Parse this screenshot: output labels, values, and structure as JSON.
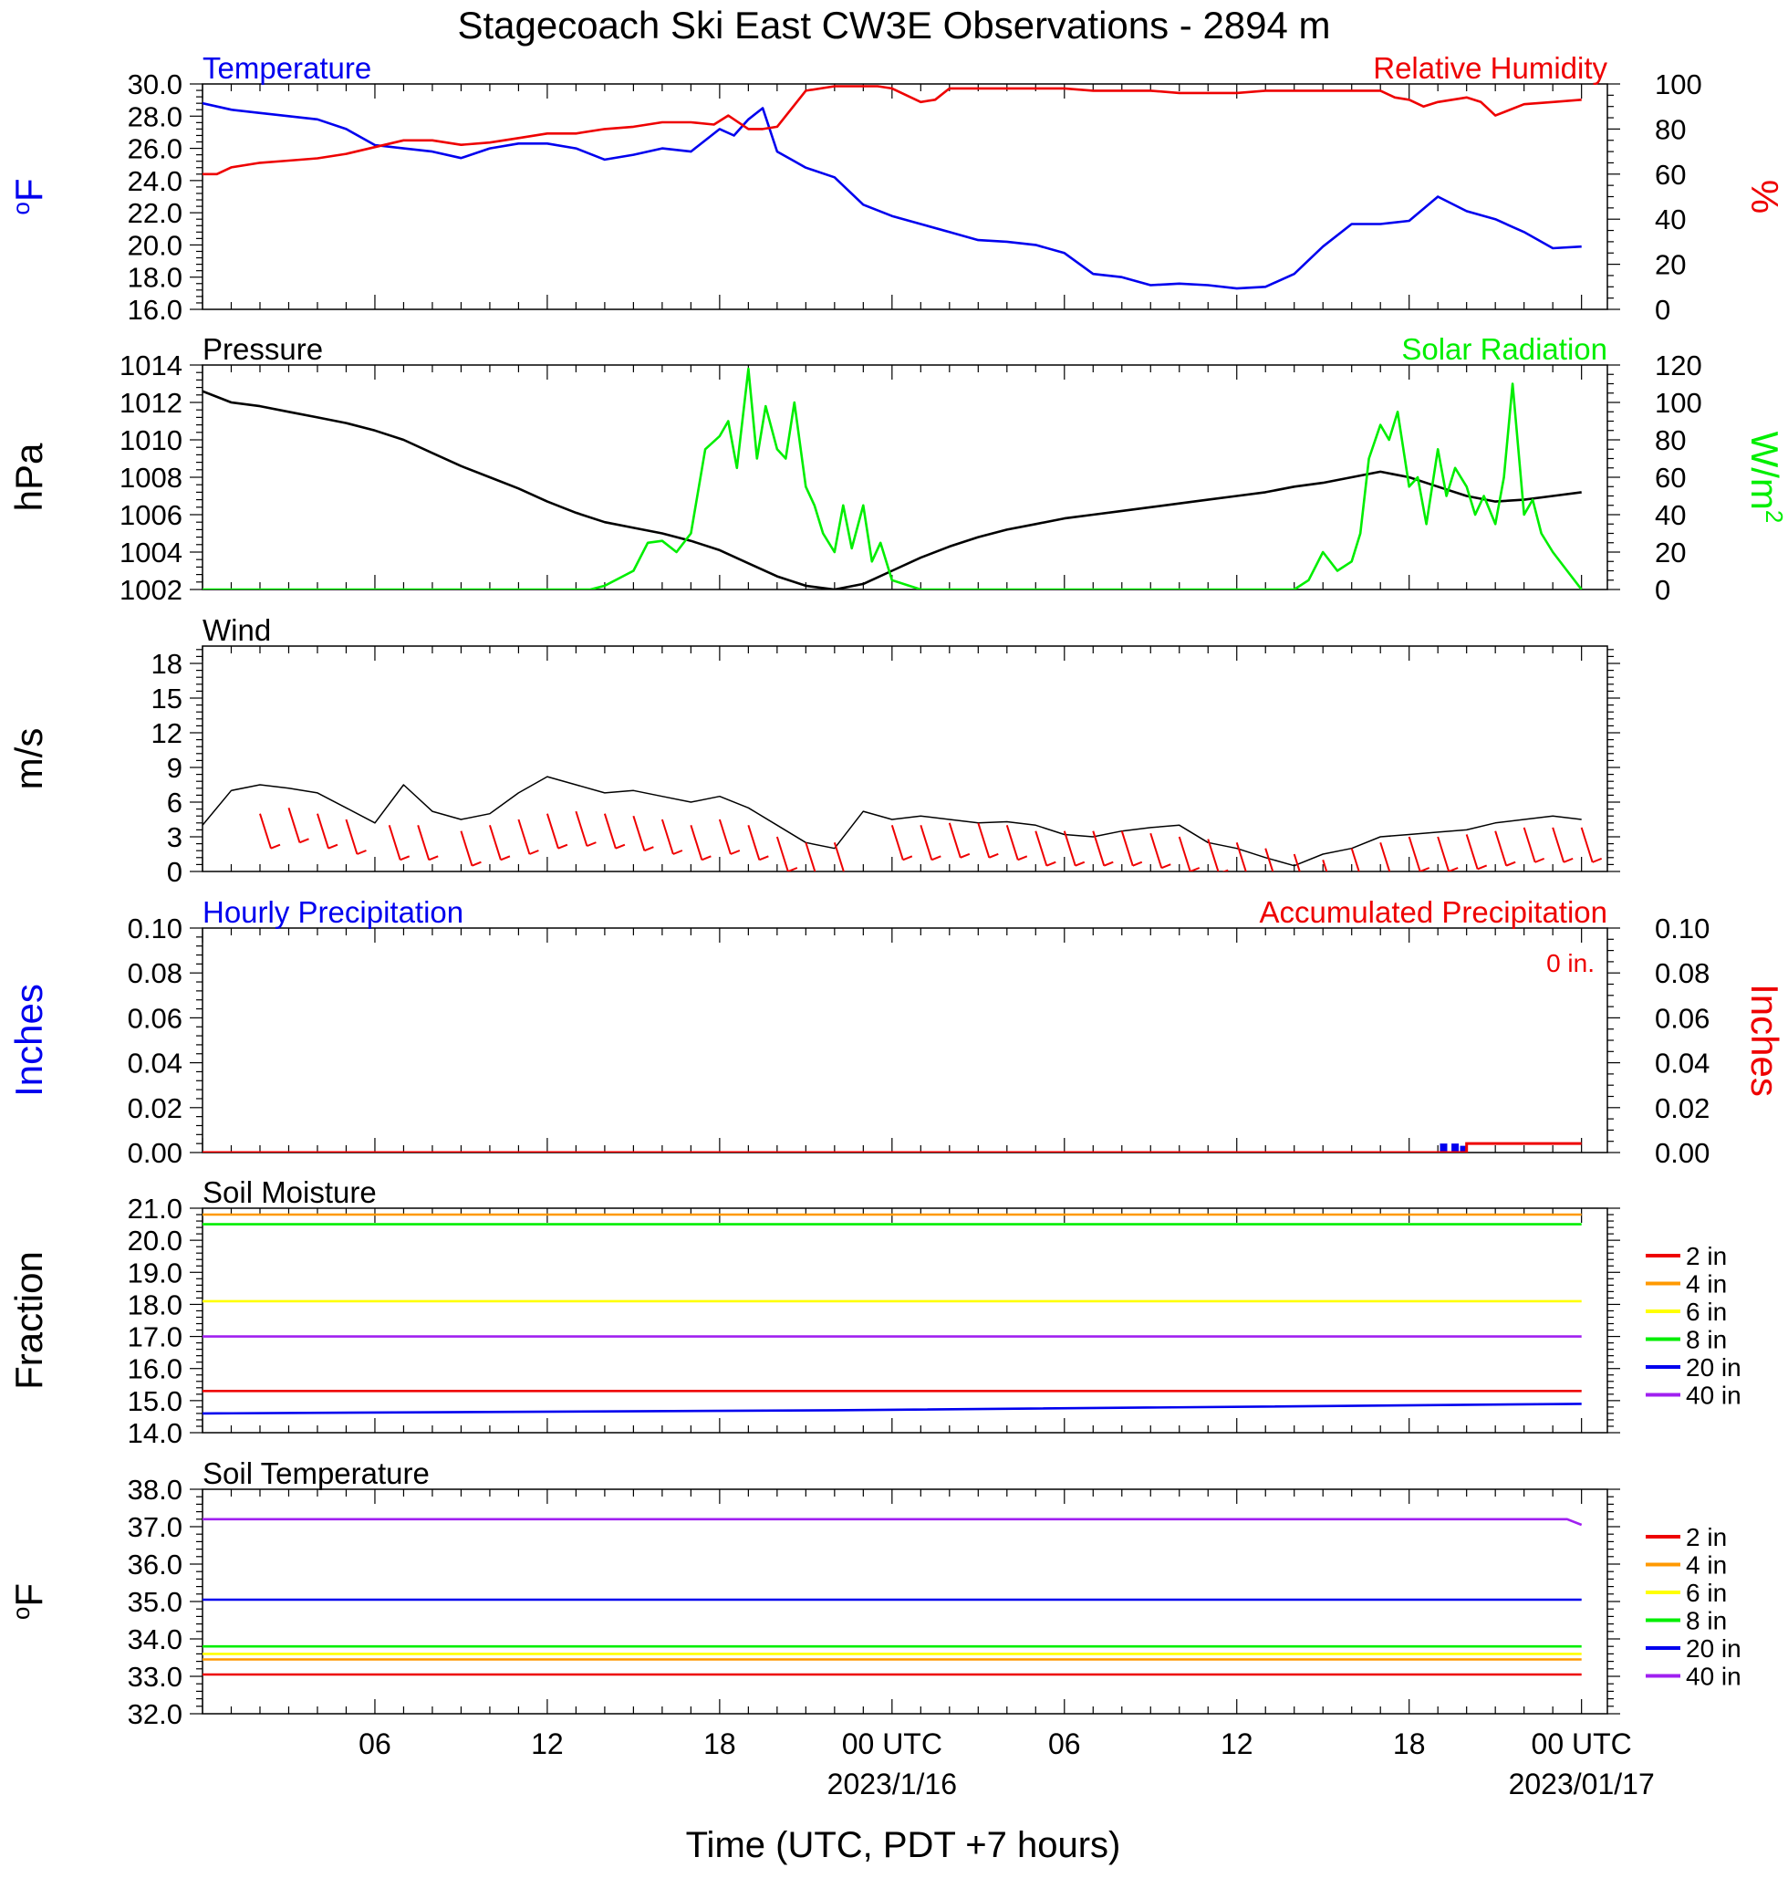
{
  "title": "Stagecoach Ski East CW3E Observations - 2894 m",
  "colors": {
    "blue": "#0000ee",
    "red": "#ee0000",
    "green": "#00ee00",
    "black": "#000000",
    "orange": "#ff9900",
    "yellow": "#ffff00",
    "purple": "#a020f0"
  },
  "time_axis": {
    "ticks": [
      {
        "hour": 6,
        "label": "06"
      },
      {
        "hour": 12,
        "label": "12"
      },
      {
        "hour": 18,
        "label": "18"
      },
      {
        "hour": 24,
        "label": "00 UTC",
        "date": "2023/1/16"
      },
      {
        "hour": 30,
        "label": "06"
      },
      {
        "hour": 36,
        "label": "12"
      },
      {
        "hour": 42,
        "label": "18"
      },
      {
        "hour": 48,
        "label": "00 UTC",
        "date": "2023/01/17"
      }
    ],
    "xlabel": "Time (UTC, PDT +7 hours)"
  },
  "chart_data": [
    {
      "id": "temp_rh",
      "type": "line",
      "left_title": "Temperature",
      "right_title": "Relative Humidity",
      "left_unit": "oF",
      "right_unit": "%",
      "ylim": [
        16,
        30
      ],
      "ytick_step": 2,
      "ylabels": [
        "16.0",
        "18.0",
        "20.0",
        "22.0",
        "24.0",
        "26.0",
        "28.0",
        "30.0"
      ],
      "y2lim": [
        0,
        100
      ],
      "y2labels": [
        "0",
        "20",
        "40",
        "60",
        "80",
        "100"
      ],
      "series": [
        {
          "name": "Temperature",
          "color": "blue",
          "axis": "left",
          "x": [
            0,
            1,
            2,
            3,
            4,
            5,
            6,
            7,
            8,
            9,
            10,
            11,
            12,
            13,
            14,
            15,
            16,
            17,
            18,
            18.5,
            19,
            19.5,
            20,
            20.5,
            21,
            22,
            23,
            24,
            25,
            26,
            27,
            28,
            29,
            30,
            31,
            32,
            33,
            34,
            35,
            36,
            37,
            38,
            39,
            40,
            41,
            42,
            43,
            44,
            45,
            45.5,
            46,
            47,
            48
          ],
          "y": [
            28.8,
            28.4,
            28.2,
            28.0,
            27.8,
            27.2,
            26.2,
            26.0,
            25.8,
            25.4,
            26.0,
            26.3,
            26.3,
            26.0,
            25.3,
            25.6,
            26.0,
            25.8,
            27.2,
            26.8,
            27.8,
            28.5,
            25.8,
            25.3,
            24.8,
            24.2,
            22.5,
            21.8,
            21.3,
            20.8,
            20.3,
            20.2,
            20.0,
            19.5,
            18.2,
            18.0,
            17.5,
            17.6,
            17.5,
            17.3,
            17.4,
            18.2,
            19.9,
            21.3,
            21.3,
            21.5,
            23.0,
            22.1,
            21.6,
            21.2,
            20.8,
            19.8,
            19.9
          ]
        },
        {
          "name": "Relative Humidity",
          "color": "red",
          "axis": "right",
          "x": [
            0,
            0.5,
            1,
            2,
            3,
            4,
            5,
            6,
            7,
            8,
            9,
            10,
            11,
            12,
            13,
            14,
            15,
            16,
            17,
            17.8,
            18.3,
            19,
            19.5,
            20,
            20.5,
            21,
            22,
            23,
            23.5,
            24,
            25,
            25.5,
            26,
            27,
            28,
            29,
            30,
            31,
            32,
            33,
            34,
            35,
            36,
            37,
            38,
            39,
            40,
            41,
            41.5,
            42,
            42.5,
            43,
            44,
            44.5,
            45,
            46,
            47,
            48
          ],
          "y": [
            60,
            60,
            63,
            65,
            66,
            67,
            69,
            72,
            75,
            75,
            73,
            74,
            76,
            78,
            78,
            80,
            81,
            83,
            83,
            82,
            86,
            80,
            80,
            81,
            89,
            97,
            99,
            99,
            99,
            98,
            92,
            93,
            98,
            98,
            98,
            98,
            98,
            97,
            97,
            97,
            96,
            96,
            96,
            97,
            97,
            97,
            97,
            97,
            94,
            93,
            90,
            92,
            94,
            92,
            86,
            91,
            92,
            93
          ]
        }
      ]
    },
    {
      "id": "pressure_solar",
      "type": "line",
      "left_title": "Pressure",
      "right_title": "Solar Radiation",
      "left_unit": "hPa",
      "right_unit": "W/m2",
      "ylim": [
        1002,
        1014
      ],
      "ytick_step": 2,
      "ylabels": [
        "1002",
        "1004",
        "1006",
        "1008",
        "1010",
        "1012",
        "1014"
      ],
      "y2lim": [
        0,
        120
      ],
      "y2labels": [
        "0",
        "20",
        "40",
        "60",
        "80",
        "100",
        "120"
      ],
      "series": [
        {
          "name": "Pressure",
          "color": "black",
          "axis": "left",
          "x": [
            0,
            1,
            2,
            3,
            4,
            5,
            6,
            7,
            8,
            9,
            10,
            11,
            12,
            13,
            14,
            15,
            16,
            17,
            18,
            19,
            20,
            21,
            22,
            23,
            24,
            25,
            26,
            27,
            28,
            29,
            30,
            31,
            32,
            33,
            34,
            35,
            36,
            37,
            38,
            39,
            40,
            41,
            42,
            43,
            44,
            45,
            46,
            47,
            48
          ],
          "y": [
            1012.6,
            1012.0,
            1011.8,
            1011.5,
            1011.2,
            1010.9,
            1010.5,
            1010.0,
            1009.3,
            1008.6,
            1008.0,
            1007.4,
            1006.7,
            1006.1,
            1005.6,
            1005.3,
            1005.0,
            1004.6,
            1004.1,
            1003.4,
            1002.7,
            1002.2,
            1002.0,
            1002.3,
            1003.0,
            1003.7,
            1004.3,
            1004.8,
            1005.2,
            1005.5,
            1005.8,
            1006.0,
            1006.2,
            1006.4,
            1006.6,
            1006.8,
            1007.0,
            1007.2,
            1007.5,
            1007.7,
            1008.0,
            1008.3,
            1008.0,
            1007.5,
            1007.0,
            1006.7,
            1006.8,
            1007.0,
            1007.2
          ]
        },
        {
          "name": "Solar Radiation",
          "color": "green",
          "axis": "right",
          "x": [
            0,
            5,
            10,
            13.5,
            14,
            15,
            15.5,
            16,
            16.5,
            17,
            17.5,
            18,
            18.3,
            18.6,
            19,
            19.3,
            19.6,
            20,
            20.3,
            20.6,
            21,
            21.3,
            21.6,
            22,
            22.3,
            22.6,
            23,
            23.3,
            23.6,
            24,
            25,
            30,
            35,
            37,
            38,
            38.5,
            39,
            39.5,
            40,
            40.3,
            40.6,
            41,
            41.3,
            41.6,
            42,
            42.3,
            42.6,
            43,
            43.3,
            43.6,
            44,
            44.3,
            44.6,
            45,
            45.3,
            45.6,
            46,
            46.3,
            46.6,
            47,
            47.5,
            48
          ],
          "y": [
            0,
            0,
            0,
            0,
            2,
            10,
            25,
            26,
            20,
            30,
            75,
            82,
            90,
            65,
            118,
            70,
            98,
            75,
            70,
            100,
            55,
            45,
            30,
            20,
            45,
            22,
            45,
            15,
            25,
            5,
            0,
            0,
            0,
            0,
            0,
            5,
            20,
            10,
            15,
            30,
            70,
            88,
            80,
            95,
            55,
            60,
            35,
            75,
            50,
            65,
            55,
            40,
            50,
            35,
            60,
            110,
            40,
            48,
            30,
            20,
            10,
            0
          ]
        }
      ]
    },
    {
      "id": "wind",
      "type": "line",
      "left_title": "Wind",
      "left_unit": "m/s",
      "ylim": [
        0,
        19.5
      ],
      "ytick_step": 3,
      "ylabels": [
        "0",
        "3",
        "6",
        "9",
        "12",
        "15",
        "18"
      ],
      "series": [
        {
          "name": "Wind",
          "color": "black",
          "axis": "left",
          "x": [
            0,
            1,
            2,
            3,
            4,
            5,
            6,
            7,
            8,
            9,
            10,
            11,
            12,
            13,
            14,
            15,
            16,
            17,
            18,
            19,
            20,
            21,
            22,
            23,
            24,
            25,
            26,
            27,
            28,
            29,
            30,
            31,
            32,
            33,
            34,
            35,
            36,
            37,
            38,
            39,
            40,
            41,
            42,
            43,
            44,
            45,
            46,
            47,
            48
          ],
          "y": [
            4.0,
            7.0,
            7.5,
            7.2,
            6.8,
            5.5,
            4.2,
            7.5,
            5.2,
            4.5,
            5.0,
            6.8,
            8.2,
            7.5,
            6.8,
            7.0,
            6.5,
            6.0,
            6.5,
            5.5,
            4.0,
            2.5,
            2.0,
            5.2,
            4.5,
            4.8,
            4.5,
            4.2,
            4.3,
            4.0,
            3.2,
            3.0,
            3.5,
            3.8,
            4.0,
            2.5,
            2.0,
            1.2,
            0.5,
            1.5,
            2.0,
            3.0,
            3.2,
            3.4,
            3.6,
            4.2,
            4.5,
            4.8,
            4.5
          ]
        },
        {
          "name": "Wind barbs",
          "color": "red",
          "axis": "left",
          "x": [
            2,
            3,
            4,
            5,
            6.5,
            7.5,
            9,
            10,
            11,
            12,
            13,
            14,
            15,
            16,
            17,
            18,
            19,
            20,
            21,
            22,
            24,
            25,
            26,
            27,
            28,
            29,
            30,
            31,
            32,
            33,
            34,
            35,
            36,
            37,
            38,
            39,
            40,
            41,
            42,
            43,
            44,
            45,
            46,
            47,
            48
          ],
          "y": [
            5,
            5.5,
            5,
            4.5,
            4,
            4,
            3.5,
            4,
            4.5,
            5,
            5.2,
            5,
            4.8,
            4.5,
            4,
            4.5,
            4,
            3,
            2.5,
            2.5,
            4,
            4,
            4.2,
            4.2,
            4,
            3.5,
            3.5,
            3.5,
            3.5,
            3.3,
            3,
            2.8,
            2.5,
            2,
            1.5,
            1,
            2,
            2.5,
            3,
            3,
            3.2,
            3.5,
            3.8,
            3.8,
            3.8
          ]
        }
      ]
    },
    {
      "id": "precip",
      "type": "bar",
      "left_title": "Hourly Precipitation",
      "right_title": "Accumulated Precipitation",
      "annotation": "0 in.",
      "left_unit": "Inches",
      "right_unit": "Inches",
      "ylim": [
        0,
        0.1
      ],
      "ytick_step": 0.02,
      "ylabels": [
        "0.00",
        "0.02",
        "0.04",
        "0.06",
        "0.08",
        "0.10"
      ],
      "y2lim": [
        0,
        0.1
      ],
      "y2labels": [
        "0.00",
        "0.02",
        "0.04",
        "0.06",
        "0.08",
        "0.10"
      ],
      "series": [
        {
          "name": "Hourly Precipitation",
          "color": "blue",
          "axis": "left",
          "type": "bar",
          "x": [
            43.2,
            43.6,
            43.9
          ],
          "y": [
            0.004,
            0.004,
            0.003
          ]
        },
        {
          "name": "Accumulated Precipitation",
          "color": "red",
          "axis": "right",
          "type": "step",
          "x": [
            0,
            43.2,
            44.0,
            48
          ],
          "y": [
            0,
            0,
            0.004,
            0.004
          ]
        }
      ]
    },
    {
      "id": "soil_moisture",
      "type": "line",
      "left_title": "Soil Moisture",
      "left_unit": "Fraction",
      "ylim": [
        14,
        21
      ],
      "ytick_step": 1,
      "ylabels": [
        "14.0",
        "15.0",
        "16.0",
        "17.0",
        "18.0",
        "19.0",
        "20.0",
        "21.0"
      ],
      "legend": [
        {
          "label": "2 in",
          "color": "red"
        },
        {
          "label": "4 in",
          "color": "orange"
        },
        {
          "label": "6 in",
          "color": "yellow"
        },
        {
          "label": "8 in",
          "color": "green"
        },
        {
          "label": "20 in",
          "color": "blue"
        },
        {
          "label": "40 in",
          "color": "purple"
        }
      ],
      "series": [
        {
          "name": "2 in",
          "color": "red",
          "axis": "left",
          "x": [
            0,
            48
          ],
          "y": [
            15.3,
            15.3
          ]
        },
        {
          "name": "4 in",
          "color": "orange",
          "axis": "left",
          "x": [
            0,
            48
          ],
          "y": [
            20.8,
            20.8
          ]
        },
        {
          "name": "6 in",
          "color": "yellow",
          "axis": "left",
          "x": [
            0,
            48
          ],
          "y": [
            18.1,
            18.1
          ]
        },
        {
          "name": "8 in",
          "color": "green",
          "axis": "left",
          "x": [
            0,
            48
          ],
          "y": [
            20.5,
            20.5
          ]
        },
        {
          "name": "20 in",
          "color": "blue",
          "axis": "left",
          "x": [
            0,
            22,
            48
          ],
          "y": [
            14.6,
            14.7,
            14.9
          ]
        },
        {
          "name": "40 in",
          "color": "purple",
          "axis": "left",
          "x": [
            0,
            48
          ],
          "y": [
            17.0,
            17.0
          ]
        }
      ]
    },
    {
      "id": "soil_temp",
      "type": "line",
      "left_title": "Soil Temperature",
      "left_unit": "oF",
      "ylim": [
        32,
        38
      ],
      "ytick_step": 1,
      "ylabels": [
        "32.0",
        "33.0",
        "34.0",
        "35.0",
        "36.0",
        "37.0",
        "38.0"
      ],
      "legend": [
        {
          "label": "2 in",
          "color": "red"
        },
        {
          "label": "4 in",
          "color": "orange"
        },
        {
          "label": "6 in",
          "color": "yellow"
        },
        {
          "label": "8 in",
          "color": "green"
        },
        {
          "label": "20 in",
          "color": "blue"
        },
        {
          "label": "40 in",
          "color": "purple"
        }
      ],
      "series": [
        {
          "name": "2 in",
          "color": "red",
          "axis": "left",
          "x": [
            0,
            48
          ],
          "y": [
            33.05,
            33.05
          ]
        },
        {
          "name": "4 in",
          "color": "orange",
          "axis": "left",
          "x": [
            0,
            48
          ],
          "y": [
            33.45,
            33.45
          ]
        },
        {
          "name": "6 in",
          "color": "yellow",
          "axis": "left",
          "x": [
            0,
            48
          ],
          "y": [
            33.6,
            33.6
          ]
        },
        {
          "name": "8 in",
          "color": "green",
          "axis": "left",
          "x": [
            0,
            48
          ],
          "y": [
            33.8,
            33.8
          ]
        },
        {
          "name": "20 in",
          "color": "blue",
          "axis": "left",
          "x": [
            0,
            48
          ],
          "y": [
            35.05,
            35.05
          ]
        },
        {
          "name": "40 in",
          "color": "purple",
          "axis": "left",
          "x": [
            0,
            47.5,
            48
          ],
          "y": [
            37.2,
            37.2,
            37.05
          ]
        }
      ]
    }
  ]
}
